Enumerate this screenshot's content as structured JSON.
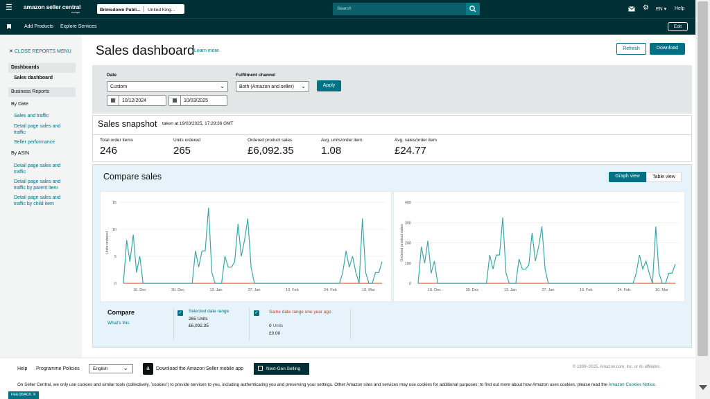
{
  "topbar": {
    "logo_main": "amazon seller central",
    "logo_sub": "europe",
    "store": "Brimsdown Publi...",
    "market": "United King...",
    "search_placeholder": "Search",
    "lang": "EN",
    "help": "Help"
  },
  "subbar": {
    "add_products": "Add Products",
    "explore": "Explore Services",
    "edit": "Edit"
  },
  "sidebar": {
    "close": "CLOSE REPORTS MENU",
    "dashboards": "Dashboards",
    "sales_dashboard": "Sales dashboard",
    "business_reports": "Business Reports",
    "by_date": "By Date",
    "sales_traffic": "Sales and traffic",
    "detail_sales": "Detail page sales and traffic",
    "seller_perf": "Seller performance",
    "by_asin": "By ASIN",
    "asin1": "Detail page sales and traffic",
    "asin2": "Detail page sales and traffic by parent item",
    "asin3": "Detail page sales and traffic by child item"
  },
  "header": {
    "title": "Sales dashboard",
    "learn_more": "Learn more",
    "refresh": "Refresh",
    "download": "Download"
  },
  "filters": {
    "date_label": "Date",
    "date_value": "Custom",
    "from": "10/12/2024",
    "to": "10/03/2025",
    "channel_label": "Fulfilment channel",
    "channel_value": "Both (Amazon and seller)",
    "apply": "Apply"
  },
  "snapshot": {
    "title": "Sales snapshot",
    "taken": "taken at 19/03/2025, 17:29:36 GMT",
    "metrics": [
      {
        "label": "Total order items",
        "value": "246"
      },
      {
        "label": "Units ordered",
        "value": "265"
      },
      {
        "label": "Ordered product sales",
        "value": "£6,092.35"
      },
      {
        "label": "Avg. units/order item",
        "value": "1.08"
      },
      {
        "label": "Avg. sales/order item",
        "value": "£24.77"
      }
    ]
  },
  "compare": {
    "title": "Compare sales",
    "graph_view": "Graph view",
    "table_view": "Table view",
    "compare_label": "Compare",
    "whats_this": "What's this",
    "sel_range": "Selected date range",
    "sel_units": "265 Units",
    "sel_sales": "£6,092.35",
    "prev_range": "Same date range one year ago",
    "prev_units_num": "0",
    "prev_units_word": "Units",
    "prev_sales": "£0.00"
  },
  "chart_data": [
    {
      "type": "line",
      "ylabel": "Units ordered",
      "ylim": [
        0,
        15
      ],
      "yticks": [
        0,
        5,
        10,
        15
      ],
      "xticks": [
        "16. Dec",
        "30. Dec",
        "13. Jan",
        "27. Jan",
        "10. Feb",
        "24. Feb",
        "10. Mar"
      ],
      "series": [
        {
          "name": "Selected date range",
          "color": "#3aa7a7",
          "values": [
            0,
            8,
            4,
            9,
            2,
            5,
            0,
            0,
            0,
            0,
            0,
            0,
            0,
            0,
            0,
            0,
            0,
            0,
            0,
            0,
            0,
            0,
            6,
            3,
            6,
            6,
            14,
            2,
            0,
            0,
            0,
            5,
            3,
            3,
            4,
            11,
            5,
            8,
            12,
            3,
            0,
            0,
            0,
            0,
            0,
            0,
            0,
            0,
            0,
            0,
            0,
            0,
            0,
            0,
            0,
            0,
            0,
            0,
            0,
            0,
            0,
            0,
            0,
            0,
            0,
            0,
            0,
            2,
            6,
            3,
            5,
            2,
            0,
            12,
            2,
            0,
            0,
            2,
            2,
            4
          ]
        },
        {
          "name": "Same date range one year ago",
          "color": "#e05a4f",
          "values": [
            0,
            0,
            0,
            0,
            0,
            0,
            0,
            0,
            0,
            0,
            0,
            0,
            0,
            0,
            0,
            0,
            0,
            0,
            0,
            0,
            0,
            0,
            0,
            0,
            0,
            0,
            0,
            0,
            0,
            0,
            0,
            0,
            0,
            0,
            0,
            0,
            0,
            0,
            0,
            0,
            0,
            0,
            0,
            0,
            0,
            0,
            0,
            0,
            0,
            0,
            0,
            0,
            0,
            0,
            0,
            0,
            0,
            0,
            0,
            0,
            0,
            0,
            0,
            0,
            0,
            0,
            0,
            0,
            0,
            0,
            0,
            0,
            0,
            0,
            0,
            0,
            0,
            0,
            0,
            0
          ]
        }
      ]
    },
    {
      "type": "line",
      "ylabel": "Ordered product sales",
      "ylim": [
        0,
        400
      ],
      "yticks": [
        0,
        100,
        200,
        300,
        400
      ],
      "xticks": [
        "16. Dec",
        "30. Dec",
        "13. Jan",
        "27. Jan",
        "10. Feb",
        "24. Feb",
        "10. Mar"
      ],
      "series": [
        {
          "name": "Selected date range",
          "color": "#3aa7a7",
          "values": [
            0,
            180,
            100,
            210,
            50,
            110,
            0,
            0,
            0,
            0,
            0,
            0,
            0,
            0,
            0,
            0,
            0,
            0,
            0,
            0,
            0,
            0,
            140,
            70,
            140,
            140,
            325,
            50,
            0,
            0,
            0,
            120,
            70,
            70,
            90,
            250,
            110,
            180,
            280,
            70,
            0,
            0,
            0,
            0,
            0,
            0,
            0,
            0,
            0,
            0,
            0,
            0,
            0,
            0,
            0,
            0,
            0,
            0,
            0,
            0,
            0,
            0,
            0,
            0,
            0,
            0,
            0,
            50,
            140,
            70,
            110,
            50,
            0,
            280,
            50,
            0,
            0,
            50,
            50,
            95
          ]
        },
        {
          "name": "Same date range one year ago",
          "color": "#e05a4f",
          "values": [
            0,
            0,
            0,
            0,
            0,
            0,
            0,
            0,
            0,
            0,
            0,
            0,
            0,
            0,
            0,
            0,
            0,
            0,
            0,
            0,
            0,
            0,
            0,
            0,
            0,
            0,
            0,
            0,
            0,
            0,
            0,
            0,
            0,
            0,
            0,
            0,
            0,
            0,
            0,
            0,
            0,
            0,
            0,
            0,
            0,
            0,
            0,
            0,
            0,
            0,
            0,
            0,
            0,
            0,
            0,
            0,
            0,
            0,
            0,
            0,
            0,
            0,
            0,
            0,
            0,
            0,
            0,
            0,
            0,
            0,
            0,
            0,
            0,
            0,
            0,
            0,
            0,
            0,
            0,
            0
          ]
        }
      ]
    }
  ],
  "footer": {
    "help": "Help",
    "programme": "Programme Policies",
    "lang": "English",
    "mobile": "Download the Amazon Seller mobile app",
    "next_gen": "Next-Gen Selling",
    "copyright": "© 1999–2025, Amazon.com, Inc. or its affiliates.",
    "cookie_text": "On Seller Central, we only use cookies and similar tools (collectively, 'cookies') to provide services to you, including authenticating you and preserving your settings. Other Amazon sites and services may use cookies for additional purposes; to find out more about how Amazon uses cookies, please read the",
    "cookie_link": "Amazon Cookies Notice.",
    "feedback": "FEEDBACK"
  }
}
